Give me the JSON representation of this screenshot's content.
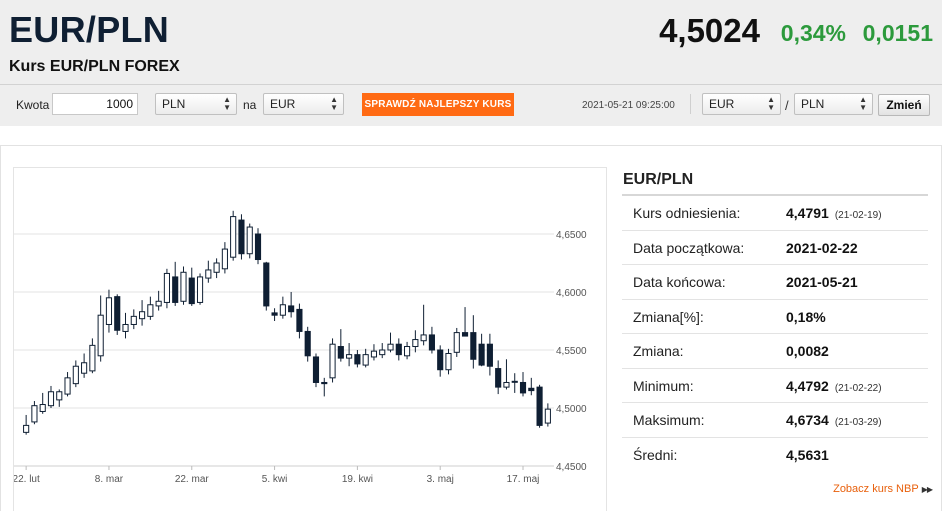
{
  "header": {
    "title": "EUR/PLN",
    "subtitle": "Kurs EUR/PLN FOREX",
    "rate": "4,5024",
    "change_pct": "0,34%",
    "change_abs": "0,0151",
    "change_color": "#2c9a3c"
  },
  "converter": {
    "amount_label": "Kwota",
    "amount_value": "1000",
    "from_currency": "PLN",
    "to_label": "na",
    "to_currency": "EUR",
    "check_button": "SPRAWDŹ NAJLEPSZY KURS",
    "check_button_color": "#ff6a13",
    "timestamp": "2021-05-21 09:25:00",
    "pair_base": "EUR",
    "pair_separator": "/",
    "pair_quote": "PLN",
    "change_button": "Zmień"
  },
  "stats": {
    "title": "EUR/PLN",
    "rows": [
      {
        "label": "Kurs odniesienia:",
        "value": "4,4791",
        "date": "(21-02-19)"
      },
      {
        "label": "Data początkowa:",
        "value": "2021-02-22",
        "date": ""
      },
      {
        "label": "Data końcowa:",
        "value": "2021-05-21",
        "date": ""
      },
      {
        "label": "Zmiana[%]:",
        "value": "0,18%",
        "date": ""
      },
      {
        "label": "Zmiana:",
        "value": "0,0082",
        "date": ""
      },
      {
        "label": "Minimum:",
        "value": "4,4792",
        "date": "(21-02-22)"
      },
      {
        "label": "Maksimum:",
        "value": "4,6734",
        "date": "(21-03-29)"
      },
      {
        "label": "Średni:",
        "value": "4,5631",
        "date": ""
      }
    ],
    "nbp_link": "Zobacz kurs NBP"
  },
  "chart_data": {
    "type": "candlestick",
    "ylim": [
      4.45,
      4.7
    ],
    "y_ticks": [
      "4,4500",
      "4,5000",
      "4,5500",
      "4,6000",
      "4,6500"
    ],
    "y_tick_values": [
      4.45,
      4.5,
      4.55,
      4.6,
      4.65
    ],
    "x_ticks": [
      {
        "label": "22. lut",
        "index": 0
      },
      {
        "label": "8. mar",
        "index": 10
      },
      {
        "label": "22. mar",
        "index": 20
      },
      {
        "label": "5. kwi",
        "index": 30
      },
      {
        "label": "19. kwi",
        "index": 40
      },
      {
        "label": "3. maj",
        "index": 50
      },
      {
        "label": "17. maj",
        "index": 60
      }
    ],
    "up_color": "#ffffff",
    "down_color": "#0f1f33",
    "candles": [
      {
        "o": 4.479,
        "h": 4.494,
        "l": 4.477,
        "c": 4.485
      },
      {
        "o": 4.488,
        "h": 4.506,
        "l": 4.486,
        "c": 4.502
      },
      {
        "o": 4.497,
        "h": 4.513,
        "l": 4.495,
        "c": 4.503
      },
      {
        "o": 4.502,
        "h": 4.519,
        "l": 4.5,
        "c": 4.514
      },
      {
        "o": 4.507,
        "h": 4.516,
        "l": 4.501,
        "c": 4.514
      },
      {
        "o": 4.512,
        "h": 4.531,
        "l": 4.51,
        "c": 4.526
      },
      {
        "o": 4.521,
        "h": 4.541,
        "l": 4.518,
        "c": 4.536
      },
      {
        "o": 4.53,
        "h": 4.547,
        "l": 4.526,
        "c": 4.539
      },
      {
        "o": 4.532,
        "h": 4.56,
        "l": 4.53,
        "c": 4.554
      },
      {
        "o": 4.545,
        "h": 4.597,
        "l": 4.54,
        "c": 4.58
      },
      {
        "o": 4.572,
        "h": 4.602,
        "l": 4.565,
        "c": 4.595
      },
      {
        "o": 4.596,
        "h": 4.598,
        "l": 4.563,
        "c": 4.567
      },
      {
        "o": 4.566,
        "h": 4.582,
        "l": 4.56,
        "c": 4.572
      },
      {
        "o": 4.572,
        "h": 4.585,
        "l": 4.568,
        "c": 4.579
      },
      {
        "o": 4.577,
        "h": 4.593,
        "l": 4.571,
        "c": 4.583
      },
      {
        "o": 4.579,
        "h": 4.596,
        "l": 4.576,
        "c": 4.589
      },
      {
        "o": 4.588,
        "h": 4.601,
        "l": 4.584,
        "c": 4.592
      },
      {
        "o": 4.591,
        "h": 4.62,
        "l": 4.586,
        "c": 4.616
      },
      {
        "o": 4.613,
        "h": 4.626,
        "l": 4.588,
        "c": 4.591
      },
      {
        "o": 4.592,
        "h": 4.622,
        "l": 4.589,
        "c": 4.617
      },
      {
        "o": 4.612,
        "h": 4.621,
        "l": 4.588,
        "c": 4.59
      },
      {
        "o": 4.591,
        "h": 4.616,
        "l": 4.589,
        "c": 4.613
      },
      {
        "o": 4.612,
        "h": 4.627,
        "l": 4.608,
        "c": 4.619
      },
      {
        "o": 4.617,
        "h": 4.629,
        "l": 4.612,
        "c": 4.625
      },
      {
        "o": 4.62,
        "h": 4.643,
        "l": 4.616,
        "c": 4.637
      },
      {
        "o": 4.63,
        "h": 4.67,
        "l": 4.627,
        "c": 4.665
      },
      {
        "o": 4.662,
        "h": 4.667,
        "l": 4.628,
        "c": 4.633
      },
      {
        "o": 4.633,
        "h": 4.659,
        "l": 4.629,
        "c": 4.656
      },
      {
        "o": 4.65,
        "h": 4.655,
        "l": 4.624,
        "c": 4.628
      },
      {
        "o": 4.625,
        "h": 4.626,
        "l": 4.584,
        "c": 4.588
      },
      {
        "o": 4.582,
        "h": 4.586,
        "l": 4.575,
        "c": 4.58
      },
      {
        "o": 4.58,
        "h": 4.596,
        "l": 4.577,
        "c": 4.589
      },
      {
        "o": 4.588,
        "h": 4.6,
        "l": 4.578,
        "c": 4.583
      },
      {
        "o": 4.585,
        "h": 4.59,
        "l": 4.56,
        "c": 4.566
      },
      {
        "o": 4.566,
        "h": 4.57,
        "l": 4.54,
        "c": 4.545
      },
      {
        "o": 4.544,
        "h": 4.547,
        "l": 4.518,
        "c": 4.522
      },
      {
        "o": 4.522,
        "h": 4.526,
        "l": 4.51,
        "c": 4.521
      },
      {
        "o": 4.526,
        "h": 4.56,
        "l": 4.522,
        "c": 4.555
      },
      {
        "o": 4.553,
        "h": 4.568,
        "l": 4.54,
        "c": 4.543
      },
      {
        "o": 4.543,
        "h": 4.556,
        "l": 4.536,
        "c": 4.546
      },
      {
        "o": 4.546,
        "h": 4.55,
        "l": 4.535,
        "c": 4.538
      },
      {
        "o": 4.537,
        "h": 4.551,
        "l": 4.535,
        "c": 4.546
      },
      {
        "o": 4.544,
        "h": 4.555,
        "l": 4.541,
        "c": 4.549
      },
      {
        "o": 4.546,
        "h": 4.556,
        "l": 4.543,
        "c": 4.55
      },
      {
        "o": 4.55,
        "h": 4.565,
        "l": 4.548,
        "c": 4.555
      },
      {
        "o": 4.555,
        "h": 4.56,
        "l": 4.541,
        "c": 4.546
      },
      {
        "o": 4.545,
        "h": 4.557,
        "l": 4.542,
        "c": 4.553
      },
      {
        "o": 4.553,
        "h": 4.567,
        "l": 4.548,
        "c": 4.559
      },
      {
        "o": 4.558,
        "h": 4.589,
        "l": 4.554,
        "c": 4.563
      },
      {
        "o": 4.563,
        "h": 4.57,
        "l": 4.547,
        "c": 4.55
      },
      {
        "o": 4.55,
        "h": 4.554,
        "l": 4.527,
        "c": 4.533
      },
      {
        "o": 4.533,
        "h": 4.551,
        "l": 4.529,
        "c": 4.547
      },
      {
        "o": 4.548,
        "h": 4.569,
        "l": 4.544,
        "c": 4.565
      },
      {
        "o": 4.565,
        "h": 4.587,
        "l": 4.562,
        "c": 4.562
      },
      {
        "o": 4.565,
        "h": 4.58,
        "l": 4.534,
        "c": 4.542
      },
      {
        "o": 4.555,
        "h": 4.564,
        "l": 4.536,
        "c": 4.537
      },
      {
        "o": 4.555,
        "h": 4.564,
        "l": 4.528,
        "c": 4.536
      },
      {
        "o": 4.534,
        "h": 4.541,
        "l": 4.512,
        "c": 4.518
      },
      {
        "o": 4.518,
        "h": 4.542,
        "l": 4.516,
        "c": 4.522
      },
      {
        "o": 4.523,
        "h": 4.53,
        "l": 4.513,
        "c": 4.523
      },
      {
        "o": 4.522,
        "h": 4.531,
        "l": 4.51,
        "c": 4.513
      },
      {
        "o": 4.517,
        "h": 4.526,
        "l": 4.511,
        "c": 4.515
      },
      {
        "o": 4.518,
        "h": 4.52,
        "l": 4.483,
        "c": 4.485
      },
      {
        "o": 4.487,
        "h": 4.504,
        "l": 4.484,
        "c": 4.499
      }
    ]
  }
}
